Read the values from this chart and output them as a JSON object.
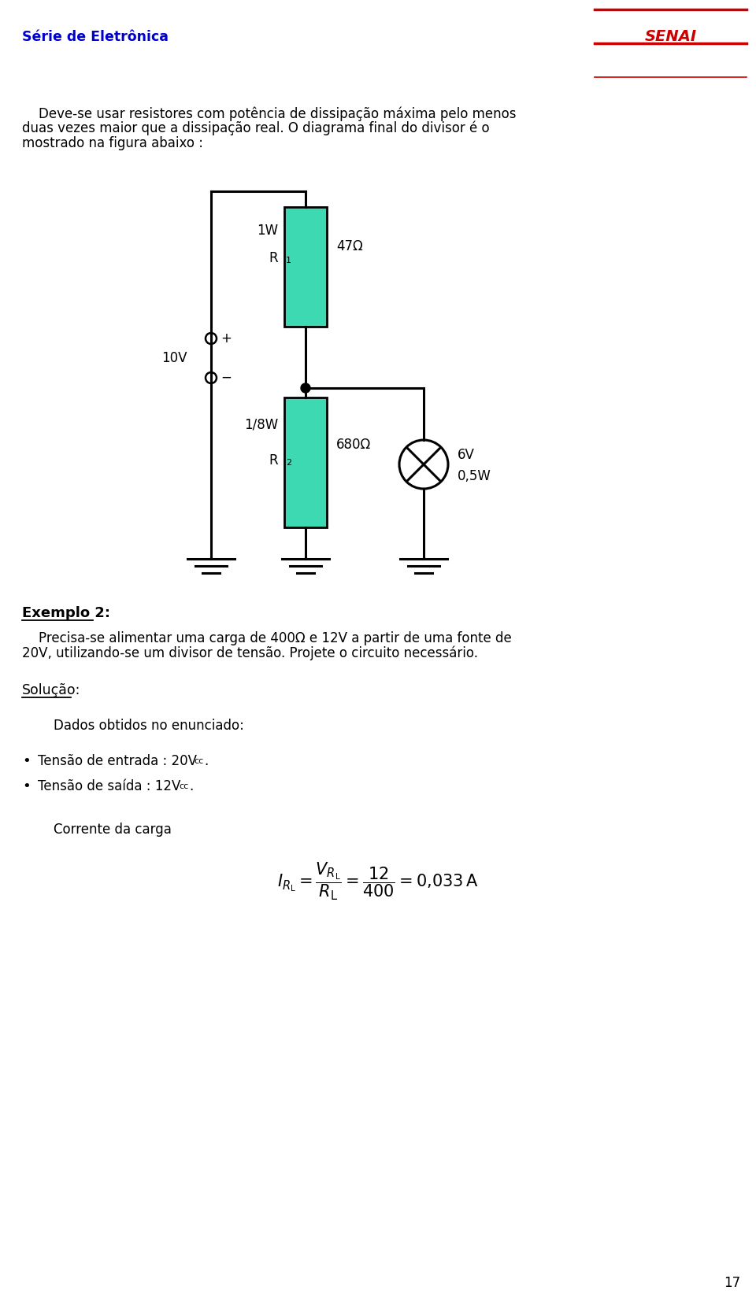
{
  "page_width": 9.6,
  "page_height": 16.44,
  "bg_color": "#ffffff",
  "header_line_color": "#cc0000",
  "header_text_left": "Série de Eletrônica",
  "header_text_right": "SENAI",
  "header_text_color": "#0000cc",
  "header_text_right_color": "#cc0000",
  "resistor_color": "#3dd9b3",
  "circuit_line_color": "#000000",
  "example_title": "Exemplo 2:",
  "solucao_title": "Solução:",
  "dados_text": "Dados obtidos no enunciado:",
  "corrente_text": "Corrente da carga",
  "page_number": "17"
}
